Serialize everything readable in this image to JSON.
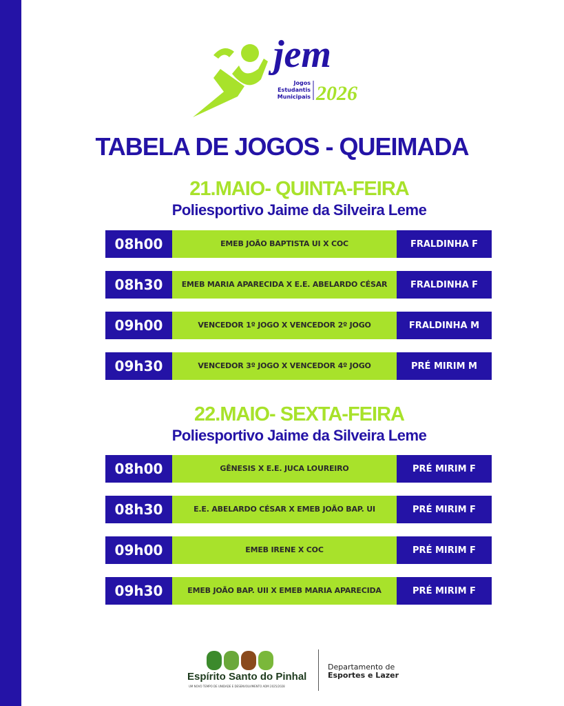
{
  "logo": {
    "main": "jem",
    "line1": "Jogos",
    "line2": "Estudantis",
    "line3": "Municipais",
    "year": "2026"
  },
  "title": "TABELA DE JOGOS - QUEIMADA",
  "days": [
    {
      "date": "21.MAIO- QUINTA-FEIRA",
      "venue": "Poliesportivo Jaime da Silveira Leme",
      "games": [
        {
          "time": "08h00",
          "match": "EMEB JOÃO BAPTISTA UI X COC",
          "category": "FRALDINHA F"
        },
        {
          "time": "08h30",
          "match": "EMEB MARIA APARECIDA X E.E. ABELARDO CÉSAR",
          "category": "FRALDINHA F"
        },
        {
          "time": "09h00",
          "match": "VENCEDOR 1º JOGO X VENCEDOR 2º JOGO",
          "category": "FRALDINHA M"
        },
        {
          "time": "09h30",
          "match": "VENCEDOR 3º JOGO X VENCEDOR 4º JOGO",
          "category": "PRÉ MIRIM M"
        }
      ]
    },
    {
      "date": "22.MAIO- SEXTA-FEIRA",
      "venue": "Poliesportivo Jaime da Silveira Leme",
      "games": [
        {
          "time": "08h00",
          "match": "GÊNESIS X E.E. JUCA LOUREIRO",
          "category": "PRÉ MIRIM F"
        },
        {
          "time": "08h30",
          "match": "E.E. ABELARDO CÉSAR X EMEB JOÃO BAP. UI",
          "category": "PRÉ MIRIM F"
        },
        {
          "time": "09h00",
          "match": "EMEB IRENE X COC",
          "category": "PRÉ MIRIM F"
        },
        {
          "time": "09h30",
          "match": "EMEB JOÃO BAP. UII X EMEB MARIA APARECIDA",
          "category": "PRÉ MIRIM F"
        }
      ]
    }
  ],
  "footer": {
    "prefeitura": "Espírito Santo do Pinhal",
    "slogan": "UM NOVO TEMPO DE UNIDADE E DESENVOLVIMENTO ADM 2025/2028",
    "dept_line1": "Departamento de",
    "dept_line2": "Esportes e Lazer"
  },
  "colors": {
    "blue": "#2413a6",
    "green": "#a8e22b"
  }
}
